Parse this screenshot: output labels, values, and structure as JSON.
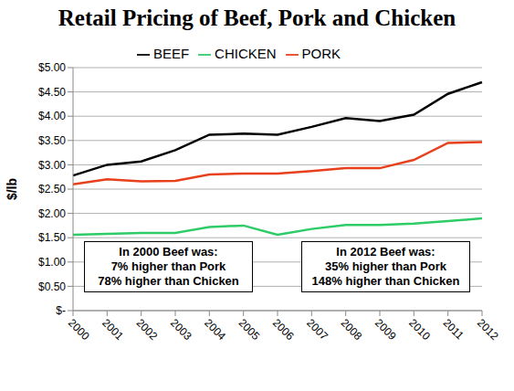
{
  "chart_data": {
    "type": "line",
    "title": "Retail Pricing of Beef, Pork and Chicken",
    "y_label": "$/lb",
    "categories": [
      "2000",
      "2001",
      "2002",
      "2003",
      "2004",
      "2005",
      "2006",
      "2007",
      "2008",
      "2009",
      "2010",
      "2011",
      "2012"
    ],
    "series": [
      {
        "name": "BEEF",
        "color": "#000000",
        "values": [
          2.78,
          3.0,
          3.07,
          3.3,
          3.62,
          3.64,
          3.62,
          3.78,
          3.96,
          3.9,
          4.03,
          4.46,
          4.7
        ]
      },
      {
        "name": "PORK",
        "color": "#e8401c",
        "values": [
          2.6,
          2.7,
          2.66,
          2.67,
          2.8,
          2.82,
          2.82,
          2.87,
          2.93,
          2.93,
          3.1,
          3.45,
          3.47
        ]
      },
      {
        "name": "CHICKEN",
        "color": "#2ecc66",
        "values": [
          1.56,
          1.58,
          1.6,
          1.6,
          1.72,
          1.75,
          1.56,
          1.68,
          1.76,
          1.76,
          1.79,
          1.84,
          1.9
        ]
      }
    ],
    "ylim": [
      0,
      5
    ],
    "yticks": [
      {
        "value": 0,
        "label": "$-"
      },
      {
        "value": 0.5,
        "label": "$0.50"
      },
      {
        "value": 1,
        "label": "$1.00"
      },
      {
        "value": 1.5,
        "label": "$1.50"
      },
      {
        "value": 2,
        "label": "$2.00"
      },
      {
        "value": 2.5,
        "label": "$2.50"
      },
      {
        "value": 3,
        "label": "$3.00"
      },
      {
        "value": 3.5,
        "label": "$3.50"
      },
      {
        "value": 4,
        "label": "$4.00"
      },
      {
        "value": 4.5,
        "label": "$4.50"
      },
      {
        "value": 5,
        "label": "$5.00"
      }
    ],
    "grid": true,
    "legend": "top",
    "annotations": [
      [
        "In 2000 Beef was:",
        "7% higher than Pork",
        "78% higher than Chicken"
      ],
      [
        "In 2012 Beef was:",
        "35% higher than Pork",
        "148% higher than Chicken"
      ]
    ]
  }
}
